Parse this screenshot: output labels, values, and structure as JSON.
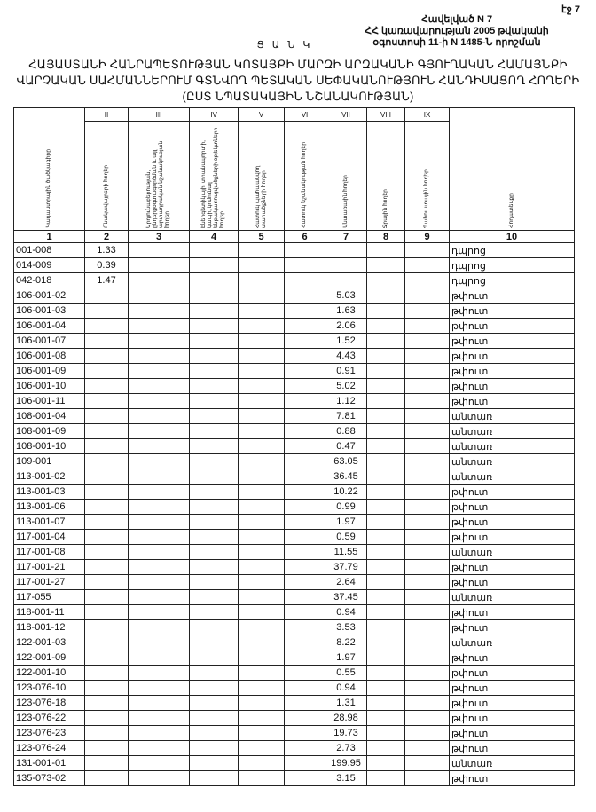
{
  "page_number": "էջ 7",
  "annex": [
    "Հավելված N 7",
    "ՀՀ կառավարության 2005 թվականի",
    "օգոստոսի 11-ի N 1485-Ն որոշման"
  ],
  "list_label": "Ց Ա Ն Կ",
  "title": [
    "ՀԱՅԱՍՏԱՆԻ ՀԱՆՐԱՊԵՏՈՒԹՅԱՆ ԿՈՏԱՅՔԻ ՄԱՐԶԻ ԱՐԶԱԿԱՆԻ ԳՅՈՒՂԱԿԱՆ ՀԱՄԱՅՆՔԻ",
    "ՎԱՐՉԱԿԱՆ ՍԱՀՄԱՆՆԵՐՈՒՄ ԳՏՆՎՈՂ ՊԵՏԱԿԱՆ ՍԵՓԱԿԱՆՈՒԹՅՈՒՆ ՀԱՆԴԻՍԱՑՈՂ ՀՈՂԵՐԻ",
    "(ԸՍՏ ՆՊԱՏԱԿԱՅԻՆ ՆՇԱՆԱԿՈՒԹՅԱՆ)"
  ],
  "table": {
    "roman": [
      "",
      "II",
      "III",
      "IV",
      "V",
      "VI",
      "VII",
      "VIII",
      "IX",
      ""
    ],
    "headers": [
      "Կադաստրային ծածկագիրը",
      "Բնակավայրերի հողեր",
      "Արդյունաբերության, ընդերքօգտագործման և այլ արտադրական նշանակության հողեր",
      "Էներգետիկայի, տրանսպորտի, կապի, կոմունալ ենթակառուցվածքների օբյեկտների հողեր",
      "Հատուկ պահպանվող տարածքների հողեր",
      "Հատուկ նշանակության հողեր",
      "Անտառային հողեր",
      "Ջրային հողեր",
      "Պահուստային հողեր",
      "Հողատեսքը"
    ],
    "numbers": [
      "1",
      "2",
      "3",
      "4",
      "5",
      "6",
      "7",
      "8",
      "9",
      "10"
    ],
    "rows": [
      [
        "001-008",
        "1.33",
        "",
        "",
        "",
        "",
        "",
        "",
        "",
        "դպրոց"
      ],
      [
        "014-009",
        "0.39",
        "",
        "",
        "",
        "",
        "",
        "",
        "",
        "դպրոց"
      ],
      [
        "042-018",
        "1.47",
        "",
        "",
        "",
        "",
        "",
        "",
        "",
        "դպրոց"
      ],
      [
        "106-001-02",
        "",
        "",
        "",
        "",
        "",
        "5.03",
        "",
        "",
        "թփուտ"
      ],
      [
        "106-001-03",
        "",
        "",
        "",
        "",
        "",
        "1.63",
        "",
        "",
        "թփուտ"
      ],
      [
        "106-001-04",
        "",
        "",
        "",
        "",
        "",
        "2.06",
        "",
        "",
        "թփուտ"
      ],
      [
        "106-001-07",
        "",
        "",
        "",
        "",
        "",
        "1.52",
        "",
        "",
        "թփուտ"
      ],
      [
        "106-001-08",
        "",
        "",
        "",
        "",
        "",
        "4.43",
        "",
        "",
        "թփուտ"
      ],
      [
        "106-001-09",
        "",
        "",
        "",
        "",
        "",
        "0.91",
        "",
        "",
        "թփուտ"
      ],
      [
        "106-001-10",
        "",
        "",
        "",
        "",
        "",
        "5.02",
        "",
        "",
        "թփուտ"
      ],
      [
        "106-001-11",
        "",
        "",
        "",
        "",
        "",
        "1.12",
        "",
        "",
        "թփուտ"
      ],
      [
        "108-001-04",
        "",
        "",
        "",
        "",
        "",
        "7.81",
        "",
        "",
        "անտառ"
      ],
      [
        "108-001-09",
        "",
        "",
        "",
        "",
        "",
        "0.88",
        "",
        "",
        "անտառ"
      ],
      [
        "108-001-10",
        "",
        "",
        "",
        "",
        "",
        "0.47",
        "",
        "",
        "անտառ"
      ],
      [
        "109-001",
        "",
        "",
        "",
        "",
        "",
        "63.05",
        "",
        "",
        "անտառ"
      ],
      [
        "113-001-02",
        "",
        "",
        "",
        "",
        "",
        "36.45",
        "",
        "",
        "անտառ"
      ],
      [
        "113-001-03",
        "",
        "",
        "",
        "",
        "",
        "10.22",
        "",
        "",
        "թփուտ"
      ],
      [
        "113-001-06",
        "",
        "",
        "",
        "",
        "",
        "0.99",
        "",
        "",
        "թփուտ"
      ],
      [
        "113-001-07",
        "",
        "",
        "",
        "",
        "",
        "1.97",
        "",
        "",
        "թփուտ"
      ],
      [
        "117-001-04",
        "",
        "",
        "",
        "",
        "",
        "0.59",
        "",
        "",
        "թփուտ"
      ],
      [
        "117-001-08",
        "",
        "",
        "",
        "",
        "",
        "11.55",
        "",
        "",
        "անտառ"
      ],
      [
        "117-001-21",
        "",
        "",
        "",
        "",
        "",
        "37.79",
        "",
        "",
        "թփուտ"
      ],
      [
        "117-001-27",
        "",
        "",
        "",
        "",
        "",
        "2.64",
        "",
        "",
        "թփուտ"
      ],
      [
        "117-055",
        "",
        "",
        "",
        "",
        "",
        "37.45",
        "",
        "",
        "անտառ"
      ],
      [
        "118-001-11",
        "",
        "",
        "",
        "",
        "",
        "0.94",
        "",
        "",
        "թփուտ"
      ],
      [
        "118-001-12",
        "",
        "",
        "",
        "",
        "",
        "3.53",
        "",
        "",
        "թփուտ"
      ],
      [
        "122-001-03",
        "",
        "",
        "",
        "",
        "",
        "8.22",
        "",
        "",
        "անտառ"
      ],
      [
        "122-001-09",
        "",
        "",
        "",
        "",
        "",
        "1.97",
        "",
        "",
        "թփուտ"
      ],
      [
        "122-001-10",
        "",
        "",
        "",
        "",
        "",
        "0.55",
        "",
        "",
        "թփուտ"
      ],
      [
        "123-076-10",
        "",
        "",
        "",
        "",
        "",
        "0.94",
        "",
        "",
        "թփուտ"
      ],
      [
        "123-076-18",
        "",
        "",
        "",
        "",
        "",
        "1.31",
        "",
        "",
        "թփուտ"
      ],
      [
        "123-076-22",
        "",
        "",
        "",
        "",
        "",
        "28.98",
        "",
        "",
        "թփուտ"
      ],
      [
        "123-076-23",
        "",
        "",
        "",
        "",
        "",
        "19.73",
        "",
        "",
        "թփուտ"
      ],
      [
        "123-076-24",
        "",
        "",
        "",
        "",
        "",
        "2.73",
        "",
        "",
        "թփուտ"
      ],
      [
        "131-001-01",
        "",
        "",
        "",
        "",
        "",
        "199.95",
        "",
        "",
        "անտառ"
      ],
      [
        "135-073-02",
        "",
        "",
        "",
        "",
        "",
        "3.15",
        "",
        "",
        "թփուտ"
      ]
    ]
  }
}
